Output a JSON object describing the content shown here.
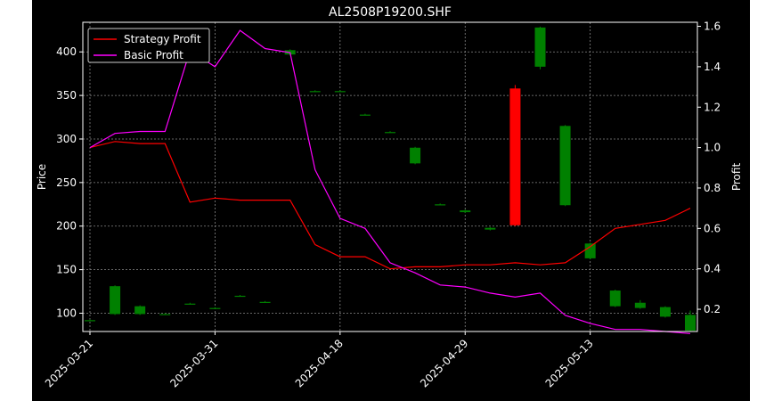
{
  "chart_data": {
    "type": "candlestick",
    "title": "AL2508P19200.SHF",
    "ylabel_left": "Price",
    "ylabel_right": "Profit",
    "grid": true,
    "legend_position": "top-left",
    "colors": {
      "background": "#000000",
      "up": "#008000",
      "down": "#ff0000",
      "strategy": "#ff0000",
      "basic": "#ff00ff",
      "axes": "#ffffff",
      "grid": "#888888"
    },
    "x_tick_labels": [
      "2025-03-21",
      "2025-03-31",
      "2025-04-18",
      "2025-04-29",
      "2025-05-13"
    ],
    "y_left_ticks": [
      100,
      150,
      200,
      250,
      300,
      350,
      400
    ],
    "y_right_ticks": [
      "0.2",
      "0.4",
      "0.6",
      "0.8",
      "1.0",
      "1.2",
      "1.4",
      "1.6"
    ],
    "ylim_left": [
      79,
      434
    ],
    "ylim_right": [
      0.09,
      1.62
    ],
    "candles": [
      {
        "open": 92,
        "close": 92,
        "high": 93,
        "low": 91
      },
      {
        "open": 99,
        "close": 131,
        "high": 132,
        "low": 98
      },
      {
        "open": 99,
        "close": 108,
        "high": 109,
        "low": 98
      },
      {
        "open": 99,
        "close": 99,
        "high": 100,
        "low": 98
      },
      {
        "open": 111,
        "close": 111,
        "high": 112,
        "low": 110
      },
      {
        "open": 106,
        "close": 106,
        "high": 107,
        "low": 105
      },
      {
        "open": 120,
        "close": 120,
        "high": 121,
        "low": 119
      },
      {
        "open": 113,
        "close": 113,
        "high": 114,
        "low": 112
      },
      {
        "open": 397,
        "close": 402,
        "high": 403,
        "low": 396
      },
      {
        "open": 355,
        "close": 355,
        "high": 356,
        "low": 354
      },
      {
        "open": 355,
        "close": 355,
        "high": 356,
        "low": 354
      },
      {
        "open": 328,
        "close": 328,
        "high": 329,
        "low": 327
      },
      {
        "open": 308,
        "close": 308,
        "high": 309,
        "low": 307
      },
      {
        "open": 272,
        "close": 290,
        "high": 291,
        "low": 271
      },
      {
        "open": 225,
        "close": 225,
        "high": 226,
        "low": 224
      },
      {
        "open": 216,
        "close": 218,
        "high": 219,
        "low": 215
      },
      {
        "open": 196,
        "close": 198,
        "high": 199,
        "low": 195
      },
      {
        "open": 358,
        "close": 201,
        "high": 362,
        "low": 200
      },
      {
        "open": 383,
        "close": 428,
        "high": 429,
        "low": 380
      },
      {
        "open": 224,
        "close": 315,
        "high": 316,
        "low": 223
      },
      {
        "open": 163,
        "close": 180,
        "high": 181,
        "low": 162
      },
      {
        "open": 108,
        "close": 126,
        "high": 127,
        "low": 107
      },
      {
        "open": 106,
        "close": 112,
        "high": 115,
        "low": 105
      },
      {
        "open": 96,
        "close": 107,
        "high": 108,
        "low": 95
      },
      {
        "open": 80,
        "close": 98,
        "high": 103,
        "low": 79
      }
    ],
    "series": [
      {
        "name": "Strategy Profit",
        "color": "#ff0000",
        "values": [
          1.0,
          1.03,
          1.02,
          1.02,
          0.73,
          0.75,
          0.74,
          0.74,
          0.74,
          0.52,
          0.46,
          0.46,
          0.4,
          0.41,
          0.41,
          0.42,
          0.42,
          0.43,
          0.42,
          0.43,
          0.51,
          0.6,
          0.62,
          0.64,
          0.7
        ]
      },
      {
        "name": "Basic Profit",
        "color": "#ff00ff",
        "values": [
          1.0,
          1.07,
          1.08,
          1.08,
          1.48,
          1.4,
          1.58,
          1.49,
          1.47,
          0.89,
          0.65,
          0.6,
          0.43,
          0.38,
          0.32,
          0.31,
          0.28,
          0.26,
          0.28,
          0.17,
          0.13,
          0.1,
          0.1,
          0.09,
          0.08
        ]
      }
    ]
  }
}
